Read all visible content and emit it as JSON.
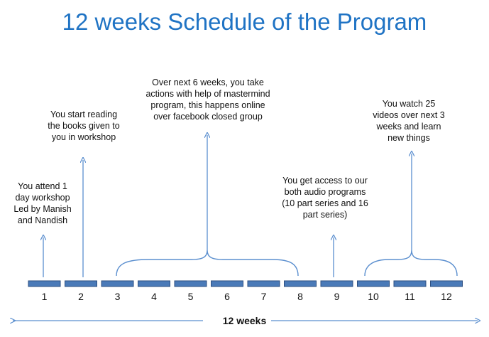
{
  "title": "12 weeks Schedule of the Program",
  "weeks": [
    "1",
    "2",
    "3",
    "4",
    "5",
    "6",
    "7",
    "8",
    "9",
    "10",
    "11",
    "12"
  ],
  "notes": [
    {
      "lines": [
        "You attend 1",
        "day workshop",
        "Led by Manish",
        "and Nandish"
      ]
    },
    {
      "lines": [
        "You start reading",
        "the books given to",
        "you in workshop"
      ]
    },
    {
      "lines": [
        "Over next 6 weeks, you take",
        "actions with help of mastermind",
        "program, this happens online",
        "over facebook closed group"
      ]
    },
    {
      "lines": [
        "You get access to our",
        "both audio programs",
        "(10 part series and 16",
        "part series)"
      ]
    },
    {
      "lines": [
        "You watch 25",
        "videos over next 3",
        "weeks and learn",
        "new things"
      ]
    }
  ],
  "span_label": "12 weeks",
  "colors": {
    "title": "#1f73c4",
    "segment_fill": "#4a7ab8",
    "segment_stroke": "#2d4f80",
    "line": "#5b8fcf"
  }
}
